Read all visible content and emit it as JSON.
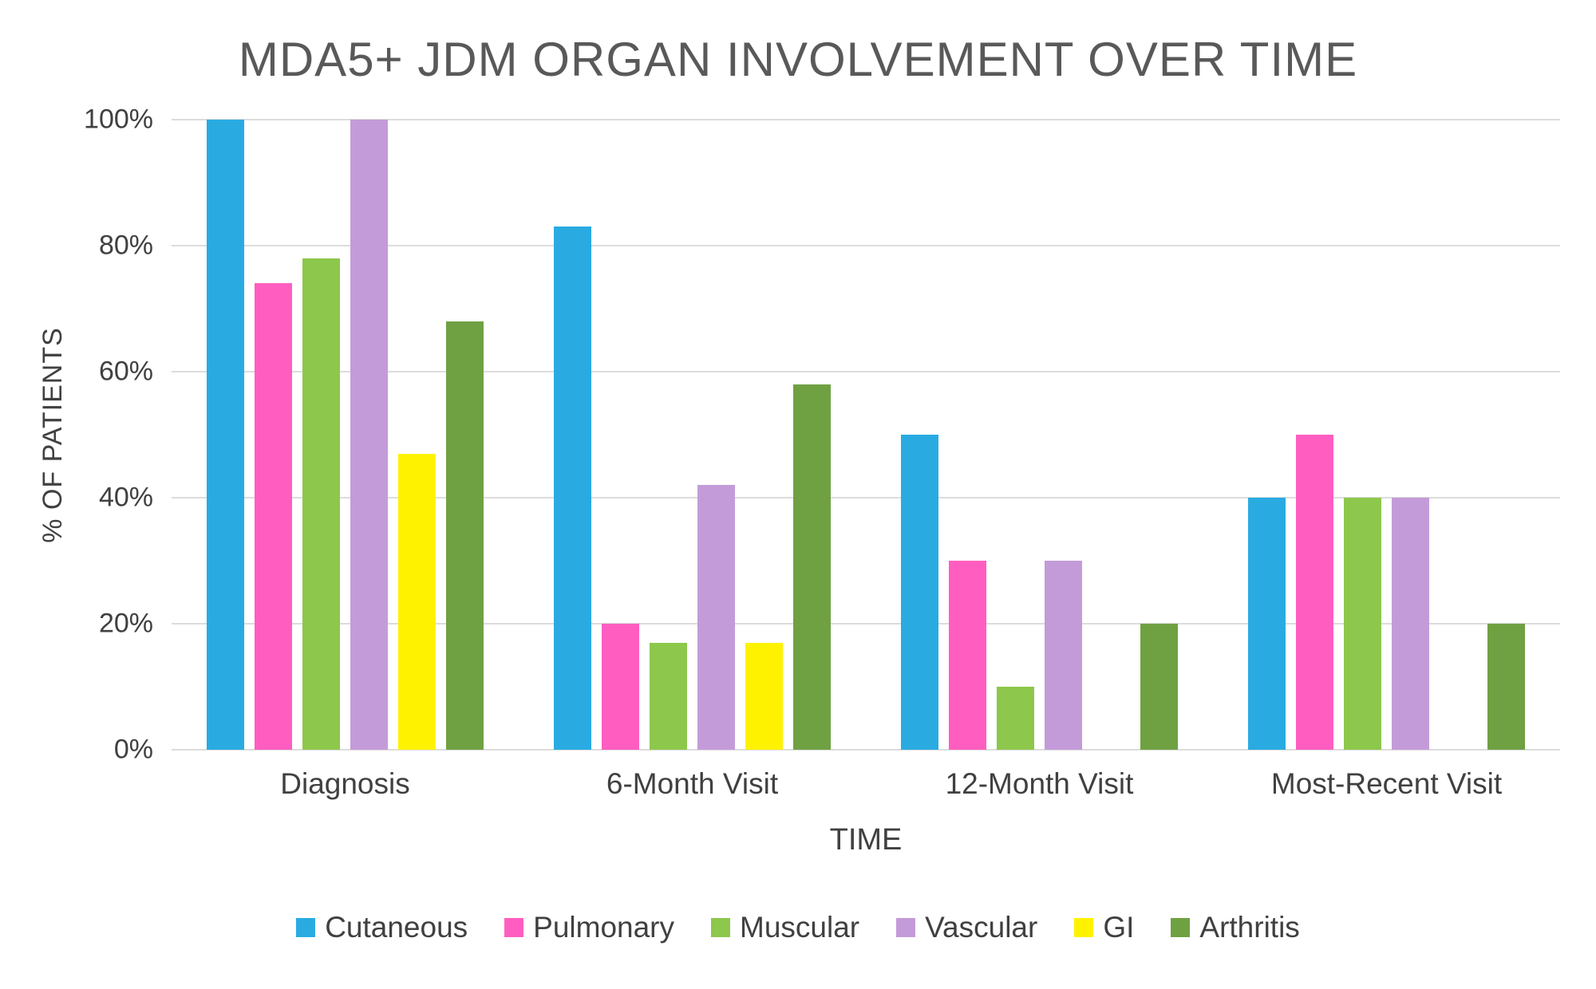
{
  "chart_data": {
    "type": "bar",
    "title": "MDA5+ JDM ORGAN INVOLVEMENT OVER TIME",
    "xlabel": "TIME",
    "ylabel": "% OF PATIENTS",
    "ylim": [
      0,
      100
    ],
    "yticks": [
      0,
      20,
      40,
      60,
      80,
      100
    ],
    "ytick_labels": [
      "0%",
      "20%",
      "40%",
      "60%",
      "80%",
      "100%"
    ],
    "categories": [
      "Diagnosis",
      "6-Month Visit",
      "12-Month Visit",
      "Most-Recent Visit"
    ],
    "series": [
      {
        "name": "Cutaneous",
        "color": "#29ABE2",
        "values": [
          100,
          83,
          50,
          40
        ]
      },
      {
        "name": "Pulmonary",
        "color": "#FF5EC0",
        "values": [
          74,
          20,
          30,
          50
        ]
      },
      {
        "name": "Muscular",
        "color": "#8DC74C",
        "values": [
          78,
          17,
          10,
          40
        ]
      },
      {
        "name": "Vascular",
        "color": "#C49BD9",
        "values": [
          100,
          42,
          30,
          40
        ]
      },
      {
        "name": "GI",
        "color": "#FFF200",
        "values": [
          47,
          17,
          0,
          0
        ]
      },
      {
        "name": "Arthritis",
        "color": "#6FA143",
        "values": [
          68,
          58,
          20,
          20
        ]
      }
    ],
    "legend_position": "bottom",
    "grid": true,
    "colors": {
      "title_text": "#595959",
      "axis_text": "#404040",
      "gridline": "#DCDCDC",
      "background": "#FFFFFF"
    }
  }
}
